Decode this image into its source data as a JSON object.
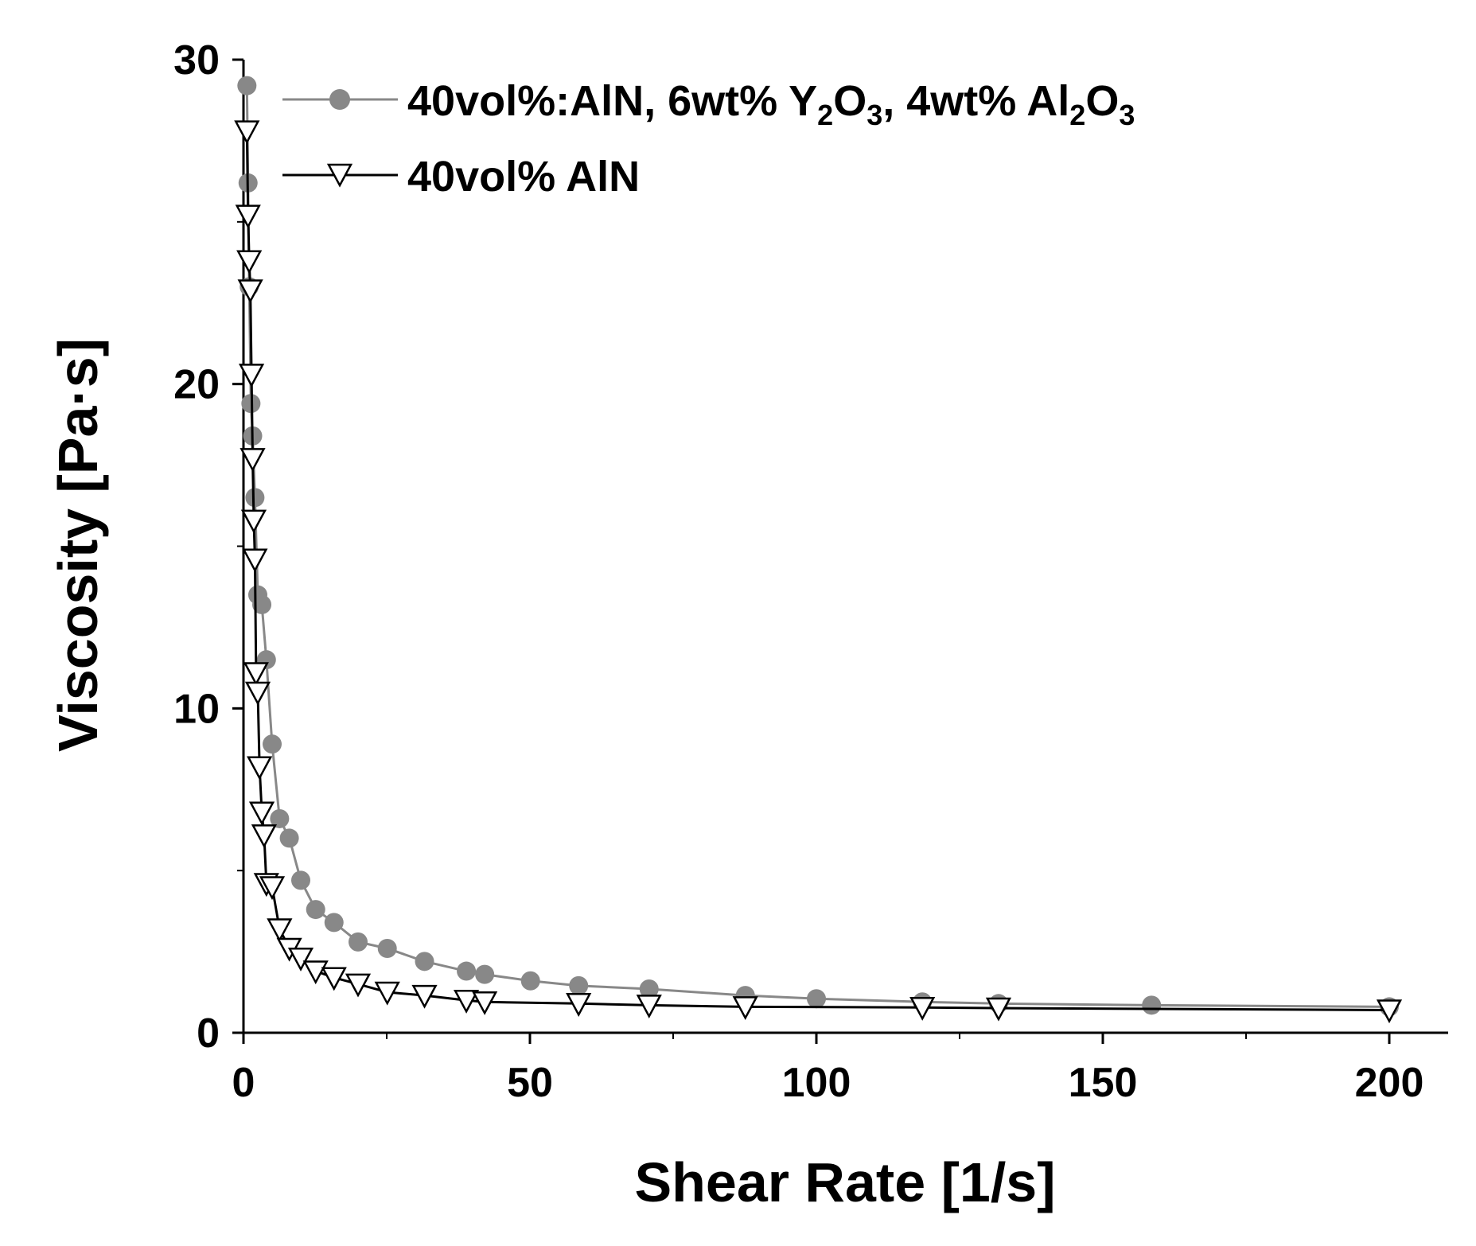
{
  "chart_data": {
    "type": "line",
    "xlabel": "Shear Rate [1/s]",
    "ylabel": "Viscosity [Pa·s]",
    "xlim": [
      0,
      210
    ],
    "ylim": [
      0,
      30
    ],
    "xticks": [
      "0",
      "50",
      "100",
      "150",
      "200"
    ],
    "xtick_values": [
      0,
      50,
      100,
      150,
      200
    ],
    "yticks": [
      "0",
      "10",
      "20",
      "30"
    ],
    "ytick_values": [
      0,
      10,
      20,
      30
    ],
    "grid": false,
    "legend_position": "top-left",
    "series": [
      {
        "name": "40vol%:AlN, 6wt% Y2O3, 4wt% Al2O3",
        "name_parts": {
          "prefix": "40vol%:AlN, 6wt% Y",
          "sub1": "2",
          "mid1": "O",
          "sub2": "3",
          "mid2": ", 4wt% Al",
          "sub3": "2",
          "mid3": "O",
          "sub4": "3"
        },
        "color": "#888888",
        "marker": "filled-circle",
        "x": [
          0.6,
          0.8,
          1.0,
          1.3,
          1.6,
          2.0,
          2.5,
          3.2,
          4.0,
          5.0,
          6.3,
          8.0,
          10.0,
          12.6,
          15.8,
          20.0,
          25.1,
          31.6,
          38.9,
          42.1,
          50.1,
          58.5,
          70.8,
          87.6,
          100.0,
          118.5,
          131.8,
          158.5,
          200.0
        ],
        "y": [
          29.2,
          26.2,
          23.0,
          19.4,
          18.4,
          16.5,
          13.5,
          13.2,
          11.5,
          8.9,
          6.6,
          6.0,
          4.7,
          3.8,
          3.4,
          2.8,
          2.6,
          2.2,
          1.9,
          1.8,
          1.6,
          1.45,
          1.35,
          1.15,
          1.05,
          0.95,
          0.9,
          0.85,
          0.8
        ]
      },
      {
        "name": "40vol% AlN",
        "color": "#000000",
        "marker": "open-triangle-down",
        "x": [
          0.6,
          0.8,
          1.0,
          1.2,
          1.4,
          1.6,
          1.8,
          2.0,
          2.2,
          2.5,
          2.8,
          3.2,
          3.6,
          4.0,
          5.0,
          6.3,
          8.0,
          10.0,
          12.6,
          15.8,
          20.0,
          25.1,
          31.6,
          38.9,
          42.1,
          58.5,
          70.8,
          87.6,
          118.5,
          131.8,
          200.0
        ],
        "y": [
          27.8,
          25.2,
          23.8,
          22.9,
          20.3,
          17.7,
          15.8,
          14.6,
          11.1,
          10.5,
          8.2,
          6.8,
          6.1,
          4.6,
          4.5,
          3.2,
          2.6,
          2.3,
          1.9,
          1.7,
          1.5,
          1.25,
          1.15,
          1.0,
          0.95,
          0.9,
          0.85,
          0.8,
          0.78,
          0.76,
          0.7
        ]
      }
    ]
  }
}
